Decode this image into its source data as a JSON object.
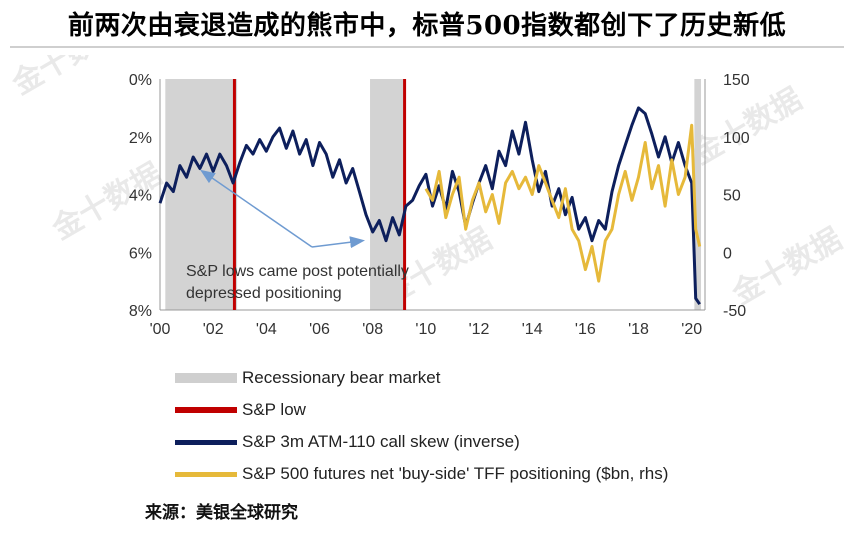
{
  "headline": "前两次由衰退造成的熊市中，标普500指数都创下了历史新低",
  "watermark": "金十数据",
  "source": "来源：美银全球研究",
  "legend": [
    {
      "label": "Recessionary bear market",
      "kind": "band",
      "color": "#cfcfcf"
    },
    {
      "label": "S&P low",
      "kind": "line",
      "color": "#c00000"
    },
    {
      "label": "S&P 3m ATM-110 call skew (inverse)",
      "kind": "line",
      "color": "#0d1f5c"
    },
    {
      "label": "S&P 500 futures net 'buy-side' TFF positioning ($bn, rhs)",
      "kind": "line",
      "color": "#e6b93a"
    }
  ],
  "annotation_lines": [
    "S&P lows came post potentially",
    "depressed positioning"
  ],
  "chart_data": {
    "type": "line",
    "x_tick_labels": [
      "'00",
      "'02",
      "'04",
      "'06",
      "'08",
      "'10",
      "'12",
      "'14",
      "'16",
      "'18",
      "'20"
    ],
    "x_range": [
      2000.0,
      2020.5
    ],
    "y_left": {
      "tick_labels": [
        "0%",
        "2%",
        "4%",
        "6%",
        "8%"
      ],
      "range": [
        0,
        8
      ],
      "inverted": true
    },
    "y_right": {
      "tick_labels": [
        "150",
        "100",
        "50",
        "0",
        "-50"
      ],
      "range": [
        -50,
        150
      ]
    },
    "recession_bands": [
      [
        2000.2,
        2002.9
      ],
      [
        2007.9,
        2009.2
      ],
      [
        2020.1,
        2020.35
      ]
    ],
    "sp_lows": [
      2002.8,
      2009.2
    ],
    "annotation_arrow_targets": [
      [
        2001.6,
        3.2
      ],
      [
        2007.6,
        5.6
      ]
    ],
    "series": [
      {
        "name": "S&P 3m ATM-110 call skew (inverse)",
        "axis": "left",
        "color": "#0d1f5c",
        "x": [
          2000.0,
          2000.25,
          2000.5,
          2000.75,
          2001.0,
          2001.25,
          2001.5,
          2001.75,
          2002.0,
          2002.25,
          2002.5,
          2002.75,
          2003.0,
          2003.25,
          2003.5,
          2003.75,
          2004.0,
          2004.25,
          2004.5,
          2004.75,
          2005.0,
          2005.25,
          2005.5,
          2005.75,
          2006.0,
          2006.25,
          2006.5,
          2006.75,
          2007.0,
          2007.25,
          2007.5,
          2007.75,
          2008.0,
          2008.25,
          2008.5,
          2008.75,
          2009.0,
          2009.25,
          2009.5,
          2009.75,
          2010.0,
          2010.25,
          2010.5,
          2010.75,
          2011.0,
          2011.25,
          2011.5,
          2011.75,
          2012.0,
          2012.25,
          2012.5,
          2012.75,
          2013.0,
          2013.25,
          2013.5,
          2013.75,
          2014.0,
          2014.25,
          2014.5,
          2014.75,
          2015.0,
          2015.25,
          2015.5,
          2015.75,
          2016.0,
          2016.25,
          2016.5,
          2016.75,
          2017.0,
          2017.25,
          2017.5,
          2017.75,
          2018.0,
          2018.25,
          2018.5,
          2018.75,
          2019.0,
          2019.25,
          2019.5,
          2019.75,
          2020.0,
          2020.15,
          2020.3
        ],
        "values": [
          4.3,
          3.6,
          3.9,
          3.0,
          3.4,
          2.7,
          3.1,
          2.6,
          3.2,
          2.6,
          3.0,
          3.6,
          2.9,
          2.3,
          2.6,
          2.1,
          2.5,
          2.0,
          1.7,
          2.4,
          1.8,
          2.6,
          2.1,
          3.0,
          2.2,
          2.6,
          3.4,
          2.8,
          3.6,
          3.1,
          3.9,
          4.7,
          5.3,
          4.9,
          5.6,
          4.8,
          5.4,
          4.4,
          4.2,
          3.7,
          3.3,
          4.4,
          3.7,
          4.5,
          3.2,
          3.9,
          5.1,
          4.3,
          3.6,
          3.0,
          3.8,
          2.5,
          3.0,
          1.8,
          2.6,
          1.5,
          2.8,
          3.9,
          3.2,
          4.4,
          3.8,
          4.7,
          4.1,
          5.2,
          4.8,
          5.6,
          4.9,
          5.2,
          3.9,
          3.0,
          2.3,
          1.6,
          1.0,
          1.2,
          1.9,
          2.7,
          2.0,
          2.9,
          2.2,
          3.0,
          3.6,
          7.6,
          7.8
        ]
      },
      {
        "name": "S&P 500 futures net 'buy-side' TFF positioning ($bn, rhs)",
        "axis": "right",
        "color": "#e6b93a",
        "x": [
          2010.0,
          2010.25,
          2010.5,
          2010.75,
          2011.0,
          2011.25,
          2011.5,
          2011.75,
          2012.0,
          2012.25,
          2012.5,
          2012.75,
          2013.0,
          2013.25,
          2013.5,
          2013.75,
          2014.0,
          2014.25,
          2014.5,
          2014.75,
          2015.0,
          2015.25,
          2015.5,
          2015.75,
          2016.0,
          2016.25,
          2016.5,
          2016.75,
          2017.0,
          2017.25,
          2017.5,
          2017.75,
          2018.0,
          2018.25,
          2018.5,
          2018.75,
          2019.0,
          2019.25,
          2019.5,
          2019.75,
          2020.0,
          2020.15,
          2020.3
        ],
        "values": [
          55,
          45,
          70,
          30,
          50,
          65,
          20,
          45,
          60,
          35,
          50,
          25,
          60,
          70,
          55,
          65,
          50,
          75,
          60,
          45,
          30,
          55,
          20,
          10,
          -15,
          5,
          -25,
          10,
          20,
          50,
          70,
          45,
          65,
          95,
          55,
          75,
          40,
          80,
          50,
          65,
          110,
          20,
          5
        ]
      }
    ]
  }
}
